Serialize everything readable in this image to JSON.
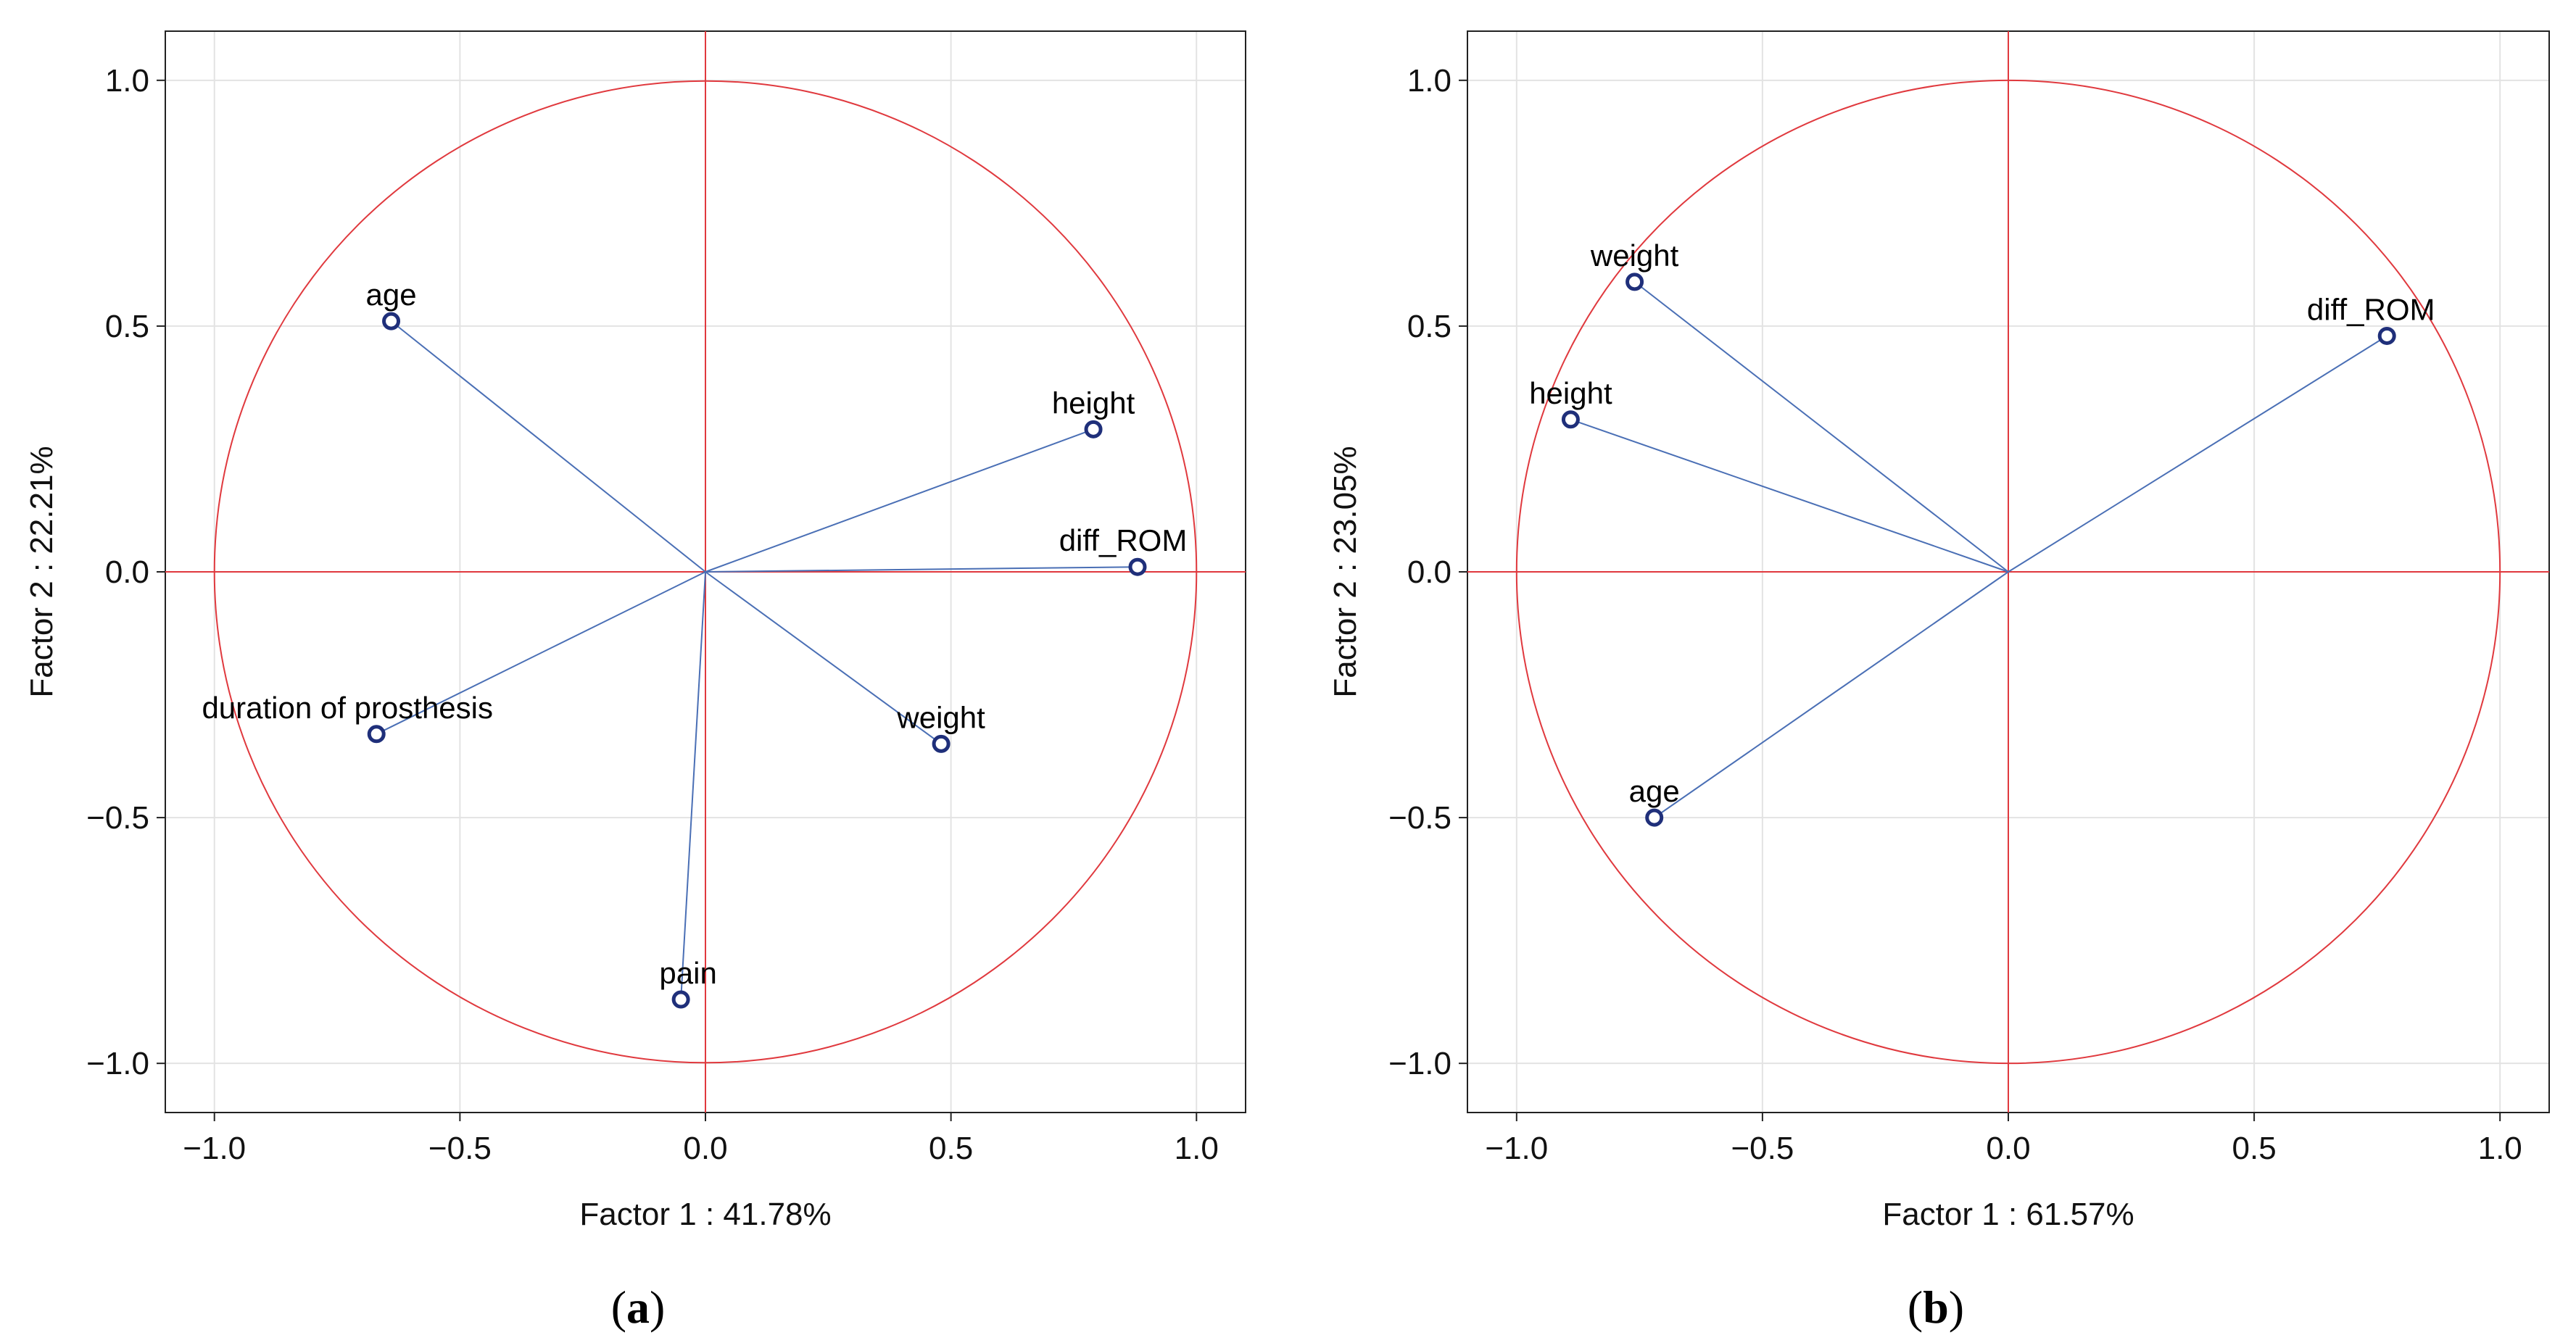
{
  "chart_data": [
    {
      "type": "scatter",
      "subtype": "pca-correlation-circle",
      "panel_label": "(a)",
      "panel_letter": "a",
      "xlabel": "Factor 1 : 41.78%",
      "ylabel": "Factor  2 : 22.21%",
      "xlim": [
        -1.1,
        1.1
      ],
      "ylim": [
        -1.1,
        1.1
      ],
      "xticks": [
        -1.0,
        -0.5,
        0.0,
        0.5,
        1.0
      ],
      "yticks": [
        -1.0,
        -0.5,
        0.0,
        0.5,
        1.0
      ],
      "xtick_labels": [
        "−1.0",
        "−0.5",
        "0.0",
        "0.5",
        "1.0"
      ],
      "ytick_labels": [
        "−1.0",
        "−0.5",
        "0.0",
        "0.5",
        "1.0"
      ],
      "grid": true,
      "unit_circle": true,
      "points": [
        {
          "name": "age",
          "x": -0.64,
          "y": 0.51
        },
        {
          "name": "height",
          "x": 0.79,
          "y": 0.29
        },
        {
          "name": "diff_ROM",
          "x": 0.88,
          "y": 0.01
        },
        {
          "name": "duration of prosthesis",
          "x": -0.67,
          "y": -0.33
        },
        {
          "name": "weight",
          "x": 0.48,
          "y": -0.35
        },
        {
          "name": "pain",
          "x": -0.05,
          "y": -0.87
        }
      ]
    },
    {
      "type": "scatter",
      "subtype": "pca-correlation-circle",
      "panel_label": "(b)",
      "panel_letter": "b",
      "xlabel": "Factor 1 : 61.57%",
      "ylabel": "Factor 2 : 23.05%",
      "xlim": [
        -1.1,
        1.1
      ],
      "ylim": [
        -1.1,
        1.1
      ],
      "xticks": [
        -1.0,
        -0.5,
        0.0,
        0.5,
        1.0
      ],
      "yticks": [
        -1.0,
        -0.5,
        0.0,
        0.5,
        1.0
      ],
      "xtick_labels": [
        "−1.0",
        "−0.5",
        "0.0",
        "0.5",
        "1.0"
      ],
      "ytick_labels": [
        "−1.0",
        "−0.5",
        "0.0",
        "0.5",
        "1.0"
      ],
      "grid": true,
      "unit_circle": true,
      "points": [
        {
          "name": "weight",
          "x": -0.76,
          "y": 0.59
        },
        {
          "name": "diff_ROM",
          "x": 0.77,
          "y": 0.48
        },
        {
          "name": "height",
          "x": -0.89,
          "y": 0.31
        },
        {
          "name": "age",
          "x": -0.72,
          "y": -0.5
        }
      ]
    }
  ],
  "colors": {
    "circle": "#e0393e",
    "vector": "#4a6fb5",
    "marker": "#1f2f7a",
    "grid": "#e3e3e3",
    "frame": "#222222"
  }
}
